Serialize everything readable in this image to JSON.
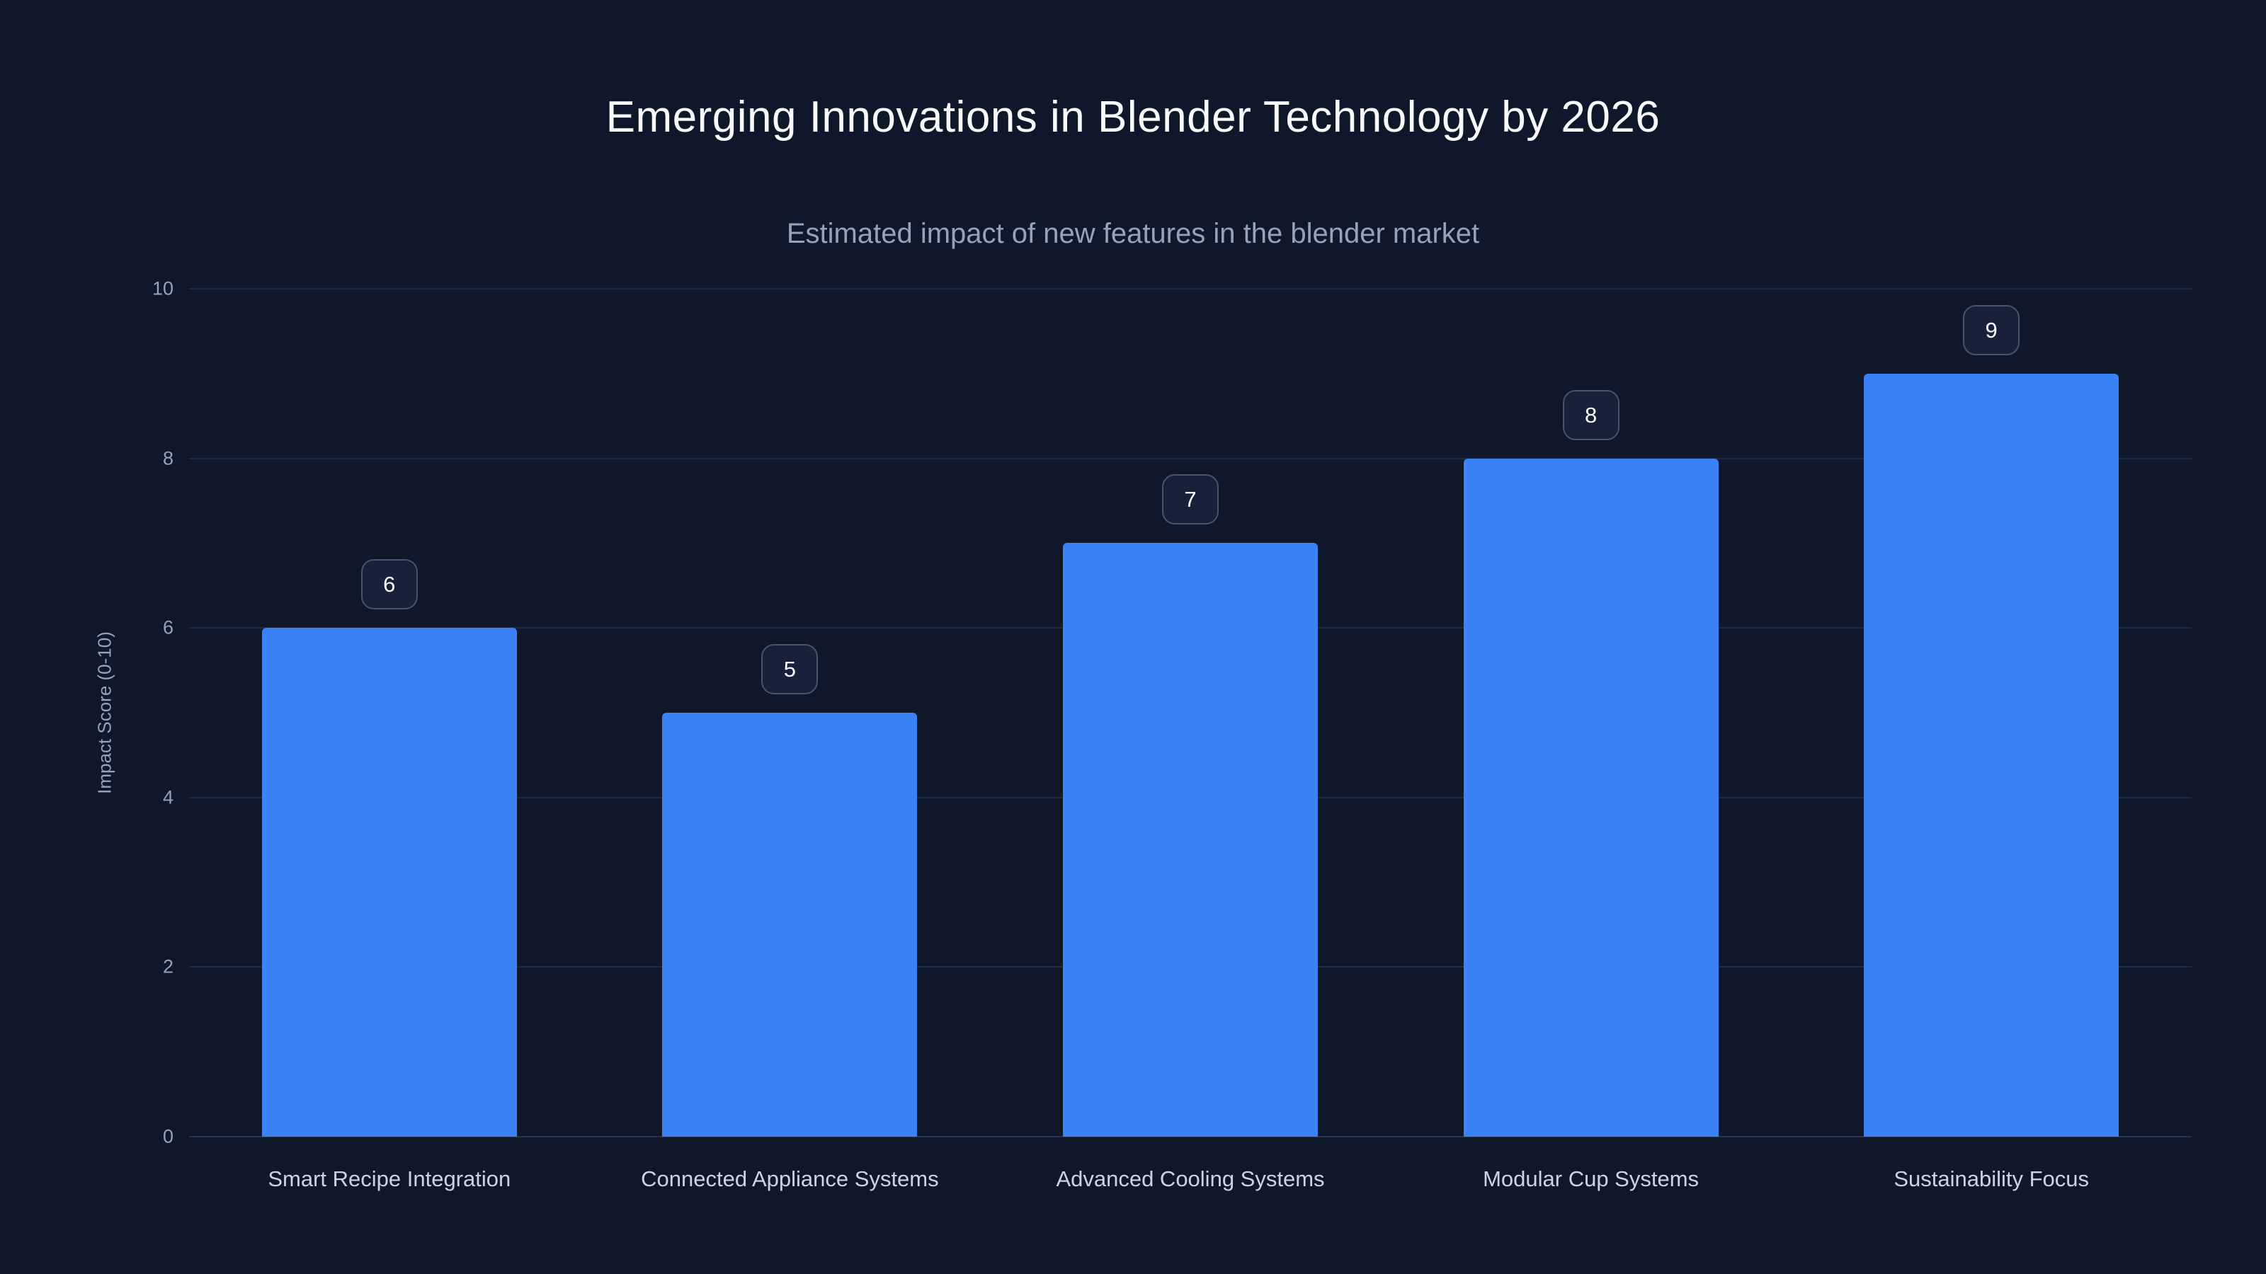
{
  "chart_data": {
    "type": "bar",
    "title": "Emerging Innovations in Blender Technology by 2026",
    "subtitle": "Estimated impact of new features in the blender market",
    "categories": [
      "Smart Recipe Integration",
      "Connected Appliance Systems",
      "Advanced Cooling Systems",
      "Modular Cup Systems",
      "Sustainability Focus"
    ],
    "values": [
      6,
      5,
      7,
      8,
      9
    ],
    "xlabel": "",
    "ylabel": "Impact Score (0-10)",
    "ylim": [
      0,
      10
    ],
    "yticks": [
      0,
      2,
      4,
      6,
      8,
      10
    ],
    "grid": true,
    "legend": false,
    "colors": {
      "background": "#0f172a",
      "bar": "#3b82f6",
      "title": "#f8fafc",
      "subtitle": "#94a3b8",
      "tick_label": "#94a3b8",
      "gridline": "#1e2a3f",
      "badge_background": "#17223a",
      "badge_border": "#475569",
      "badge_text": "#f8fafc",
      "category_label": "#cbd5e1"
    }
  }
}
